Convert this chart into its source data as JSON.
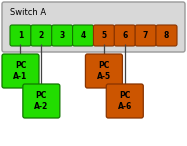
{
  "title": "Switch A",
  "switch_bg": "#d8d8d8",
  "switch_border": "#999999",
  "green_color": "#22dd00",
  "green_border": "#117700",
  "orange_color": "#cc5500",
  "orange_border": "#883300",
  "ports": [
    1,
    2,
    3,
    4,
    5,
    6,
    7,
    8
  ],
  "port_colors": [
    "green",
    "green",
    "green",
    "green",
    "orange",
    "orange",
    "orange",
    "orange"
  ],
  "pcs": [
    {
      "label": "PC\nA-1",
      "color": "green",
      "col": 0,
      "row": 0
    },
    {
      "label": "PC\nA-2",
      "color": "green",
      "col": 1,
      "row": 1
    },
    {
      "label": "PC\nA-5",
      "color": "orange",
      "col": 4,
      "row": 0
    },
    {
      "label": "PC\nA-6",
      "color": "orange",
      "col": 5,
      "row": 1
    }
  ],
  "figsize": [
    1.87,
    1.46
  ],
  "dpi": 100
}
